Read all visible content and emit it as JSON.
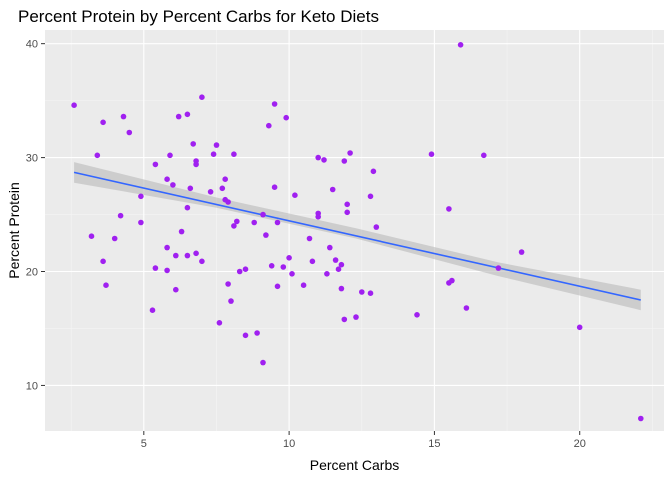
{
  "chart_data": {
    "type": "scatter",
    "title": "Percent Protein by Percent Carbs for Keto Diets",
    "xlabel": "Percent Carbs",
    "ylabel": "Percent Protein",
    "xlim": [
      1.6,
      22.9
    ],
    "ylim": [
      6.0,
      41.2
    ],
    "x_ticks": [
      5,
      10,
      15,
      20
    ],
    "y_ticks": [
      10,
      20,
      30,
      40
    ],
    "x_tick_labels": [
      "5",
      "10",
      "15",
      "20"
    ],
    "y_tick_labels": [
      "10",
      "20",
      "30",
      "40"
    ],
    "grid": true,
    "legend": "none",
    "colors": {
      "point": "#a020f0",
      "trend_line": "#3366ff",
      "confidence_band": "#bdbdbd",
      "panel": "#ebebeb",
      "grid": "#ffffff"
    },
    "trend_line": {
      "x": [
        2.6,
        22.1
      ],
      "y": [
        28.7,
        17.5
      ]
    },
    "confidence_band": {
      "x": [
        2.6,
        7.5,
        12.3,
        17.2,
        22.1
      ],
      "lower": [
        27.8,
        25.6,
        22.9,
        19.6,
        16.6
      ],
      "upper": [
        29.6,
        26.5,
        23.8,
        20.8,
        18.4
      ]
    },
    "points": [
      {
        "x": 2.6,
        "y": 34.6
      },
      {
        "x": 3.4,
        "y": 30.2
      },
      {
        "x": 3.6,
        "y": 33.1
      },
      {
        "x": 3.2,
        "y": 23.1
      },
      {
        "x": 3.6,
        "y": 20.9
      },
      {
        "x": 3.7,
        "y": 18.8
      },
      {
        "x": 4.0,
        "y": 22.9
      },
      {
        "x": 4.2,
        "y": 24.9
      },
      {
        "x": 4.3,
        "y": 33.6
      },
      {
        "x": 4.5,
        "y": 32.2
      },
      {
        "x": 4.9,
        "y": 26.6
      },
      {
        "x": 4.9,
        "y": 24.3
      },
      {
        "x": 5.3,
        "y": 16.6
      },
      {
        "x": 5.4,
        "y": 29.4
      },
      {
        "x": 5.4,
        "y": 20.3
      },
      {
        "x": 5.8,
        "y": 28.1
      },
      {
        "x": 5.8,
        "y": 22.1
      },
      {
        "x": 5.8,
        "y": 20.1
      },
      {
        "x": 5.9,
        "y": 30.2
      },
      {
        "x": 6.0,
        "y": 27.6
      },
      {
        "x": 6.1,
        "y": 18.4
      },
      {
        "x": 6.1,
        "y": 21.4
      },
      {
        "x": 6.2,
        "y": 33.6
      },
      {
        "x": 6.3,
        "y": 23.5
      },
      {
        "x": 6.5,
        "y": 33.8
      },
      {
        "x": 6.5,
        "y": 25.6
      },
      {
        "x": 6.5,
        "y": 21.4
      },
      {
        "x": 6.6,
        "y": 27.3
      },
      {
        "x": 6.7,
        "y": 31.2
      },
      {
        "x": 6.8,
        "y": 29.4
      },
      {
        "x": 6.8,
        "y": 29.7
      },
      {
        "x": 6.8,
        "y": 21.6
      },
      {
        "x": 7.0,
        "y": 20.9
      },
      {
        "x": 7.0,
        "y": 35.3
      },
      {
        "x": 7.3,
        "y": 27.0
      },
      {
        "x": 7.4,
        "y": 30.3
      },
      {
        "x": 7.5,
        "y": 31.1
      },
      {
        "x": 7.6,
        "y": 15.5
      },
      {
        "x": 7.7,
        "y": 27.3
      },
      {
        "x": 7.8,
        "y": 28.1
      },
      {
        "x": 7.8,
        "y": 26.3
      },
      {
        "x": 7.9,
        "y": 18.9
      },
      {
        "x": 7.9,
        "y": 26.1
      },
      {
        "x": 8.0,
        "y": 17.4
      },
      {
        "x": 8.1,
        "y": 24.0
      },
      {
        "x": 8.1,
        "y": 30.3
      },
      {
        "x": 8.2,
        "y": 24.4
      },
      {
        "x": 8.3,
        "y": 20.0
      },
      {
        "x": 8.5,
        "y": 14.4
      },
      {
        "x": 8.5,
        "y": 20.2
      },
      {
        "x": 8.8,
        "y": 24.3
      },
      {
        "x": 8.9,
        "y": 14.6
      },
      {
        "x": 9.1,
        "y": 25.0
      },
      {
        "x": 9.1,
        "y": 12.0
      },
      {
        "x": 9.2,
        "y": 23.2
      },
      {
        "x": 9.3,
        "y": 32.8
      },
      {
        "x": 9.4,
        "y": 20.5
      },
      {
        "x": 9.5,
        "y": 34.7
      },
      {
        "x": 9.5,
        "y": 27.4
      },
      {
        "x": 9.6,
        "y": 18.7
      },
      {
        "x": 9.6,
        "y": 24.3
      },
      {
        "x": 9.8,
        "y": 20.4
      },
      {
        "x": 9.9,
        "y": 33.5
      },
      {
        "x": 10.0,
        "y": 21.2
      },
      {
        "x": 10.1,
        "y": 19.8
      },
      {
        "x": 10.2,
        "y": 26.7
      },
      {
        "x": 10.5,
        "y": 18.8
      },
      {
        "x": 10.7,
        "y": 22.9
      },
      {
        "x": 10.8,
        "y": 20.9
      },
      {
        "x": 11.0,
        "y": 30.0
      },
      {
        "x": 11.0,
        "y": 25.1
      },
      {
        "x": 11.0,
        "y": 24.8
      },
      {
        "x": 11.2,
        "y": 29.8
      },
      {
        "x": 11.3,
        "y": 19.8
      },
      {
        "x": 11.4,
        "y": 22.1
      },
      {
        "x": 11.5,
        "y": 27.2
      },
      {
        "x": 11.6,
        "y": 21.0
      },
      {
        "x": 11.7,
        "y": 20.2
      },
      {
        "x": 11.8,
        "y": 20.6
      },
      {
        "x": 11.8,
        "y": 18.5
      },
      {
        "x": 11.9,
        "y": 15.8
      },
      {
        "x": 11.9,
        "y": 29.7
      },
      {
        "x": 12.0,
        "y": 25.9
      },
      {
        "x": 12.0,
        "y": 25.2
      },
      {
        "x": 12.1,
        "y": 30.4
      },
      {
        "x": 12.3,
        "y": 16.0
      },
      {
        "x": 12.5,
        "y": 18.2
      },
      {
        "x": 12.8,
        "y": 26.6
      },
      {
        "x": 12.8,
        "y": 18.1
      },
      {
        "x": 12.9,
        "y": 28.8
      },
      {
        "x": 13.0,
        "y": 23.9
      },
      {
        "x": 14.4,
        "y": 16.2
      },
      {
        "x": 14.9,
        "y": 30.3
      },
      {
        "x": 15.5,
        "y": 25.5
      },
      {
        "x": 15.5,
        "y": 19.0
      },
      {
        "x": 15.6,
        "y": 19.2
      },
      {
        "x": 15.9,
        "y": 39.9
      },
      {
        "x": 16.1,
        "y": 16.8
      },
      {
        "x": 16.7,
        "y": 30.2
      },
      {
        "x": 17.2,
        "y": 20.3
      },
      {
        "x": 18.0,
        "y": 21.7
      },
      {
        "x": 20.0,
        "y": 15.1
      },
      {
        "x": 22.1,
        "y": 7.1
      }
    ]
  }
}
